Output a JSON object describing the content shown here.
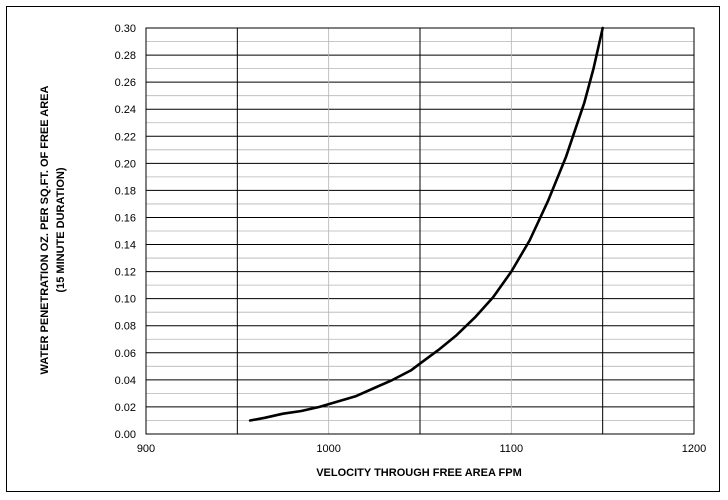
{
  "chart_data": {
    "type": "line",
    "title": "",
    "xlabel": "VELOCITY THROUGH FREE AREA FPM",
    "ylabel_lines": [
      "WATER PENETRATION OZ. PER SQ.FT. OF FREE AREA",
      "(15 MINUTE DURATION)"
    ],
    "xlim": [
      900,
      1200
    ],
    "ylim": [
      0,
      0.3
    ],
    "x_ticks": [
      900,
      1000,
      1100,
      1200
    ],
    "x_tick_labels": [
      "900",
      "1000",
      "1100",
      "1200"
    ],
    "y_ticks": [
      0,
      0.02,
      0.04,
      0.06,
      0.08,
      0.1,
      0.12,
      0.14,
      0.16,
      0.18,
      0.2,
      0.22,
      0.24,
      0.26,
      0.28,
      0.3
    ],
    "y_tick_labels": [
      "0.00",
      "0.02",
      "0.04",
      "0.06",
      "0.08",
      "0.10",
      "0.12",
      "0.14",
      "0.16",
      "0.18",
      "0.20",
      "0.22",
      "0.24",
      "0.26",
      "0.28",
      "0.30"
    ],
    "grid": true,
    "major_vertical_gridlines": [
      950,
      1050,
      1150
    ],
    "legend": "none",
    "series": [
      {
        "color": "#000000",
        "points": [
          [
            957,
            0.01
          ],
          [
            965,
            0.012
          ],
          [
            975,
            0.015
          ],
          [
            985,
            0.017
          ],
          [
            995,
            0.02
          ],
          [
            1005,
            0.024
          ],
          [
            1015,
            0.028
          ],
          [
            1025,
            0.034
          ],
          [
            1035,
            0.04
          ],
          [
            1045,
            0.047
          ],
          [
            1050,
            0.052
          ],
          [
            1060,
            0.062
          ],
          [
            1070,
            0.073
          ],
          [
            1080,
            0.086
          ],
          [
            1090,
            0.101
          ],
          [
            1100,
            0.12
          ],
          [
            1110,
            0.143
          ],
          [
            1120,
            0.172
          ],
          [
            1130,
            0.205
          ],
          [
            1140,
            0.245
          ],
          [
            1145,
            0.27
          ],
          [
            1150,
            0.3
          ]
        ]
      }
    ]
  }
}
